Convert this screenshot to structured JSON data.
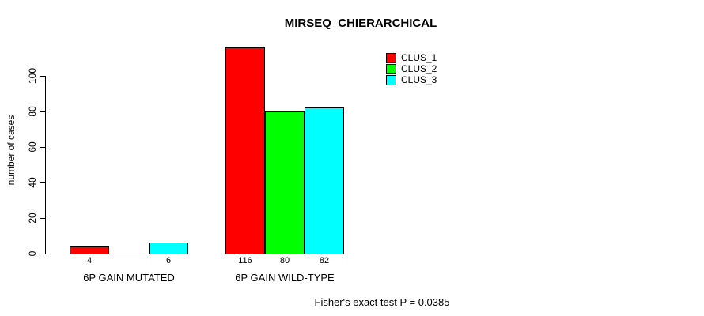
{
  "title": "MIRSEQ_CHIERARCHICAL",
  "footnote": "Fisher's exact test P = 0.0385",
  "colors": {
    "clus_1": "#ff0000",
    "clus_2": "#00ff00",
    "clus_3": "#00ffff",
    "axis": "#000000",
    "background": "#ffffff"
  },
  "chart_data": {
    "type": "bar",
    "title": "MIRSEQ_CHIERARCHICAL",
    "xlabel": "",
    "ylabel": "number of cases",
    "categories": [
      "6P GAIN MUTATED",
      "6P GAIN WILD-TYPE"
    ],
    "series": [
      {
        "name": "CLUS_1",
        "color": "#ff0000",
        "values": [
          4,
          116
        ]
      },
      {
        "name": "CLUS_2",
        "color": "#00ff00",
        "values": [
          0,
          80
        ]
      },
      {
        "name": "CLUS_3",
        "color": "#00ffff",
        "values": [
          6,
          82
        ]
      }
    ],
    "bar_value_labels": [
      [
        "4",
        null,
        "6"
      ],
      [
        "116",
        "80",
        "82"
      ]
    ],
    "yticks": [
      "0",
      "20",
      "40",
      "60",
      "80",
      "100"
    ],
    "ytick_values": [
      0,
      20,
      40,
      60,
      80,
      100
    ],
    "ylim": [
      0,
      116
    ],
    "grid": false,
    "legend_position": "top-right",
    "annotation": "Fisher's exact test P = 0.0385"
  }
}
